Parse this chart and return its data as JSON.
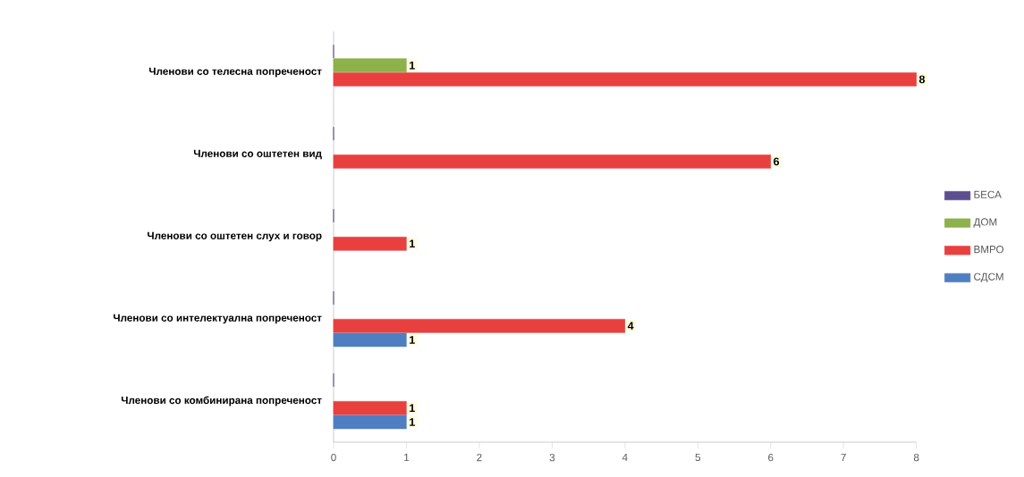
{
  "chart_data": {
    "type": "bar",
    "orientation": "horizontal",
    "categories": [
      "Членови со телесна  попреченост",
      "Членови со оштетен вид",
      "Членови со оштетен слух и говор",
      "Членови со интелектуална попреченост",
      "Членови со комбинирана попреченост"
    ],
    "series": [
      {
        "name": "БЕСА",
        "color": "#5b4f8f",
        "values": [
          0,
          0,
          0,
          0,
          0
        ],
        "value_labels": [
          null,
          null,
          null,
          null,
          null
        ]
      },
      {
        "name": "ДОМ",
        "color": "#8db14b",
        "values": [
          1,
          null,
          null,
          null,
          null
        ],
        "value_labels": [
          "1",
          null,
          null,
          null,
          null
        ]
      },
      {
        "name": "ВМРО",
        "color": "#e8403f",
        "values": [
          8,
          6,
          1,
          4,
          1
        ],
        "value_labels": [
          "8",
          "6",
          "1",
          "4",
          "1"
        ]
      },
      {
        "name": "СДСМ",
        "color": "#4f7fc0",
        "values": [
          null,
          null,
          null,
          1,
          1
        ],
        "value_labels": [
          null,
          null,
          null,
          "1",
          "1"
        ]
      }
    ],
    "xlim": [
      0,
      8
    ],
    "xticks": [
      0,
      1,
      2,
      3,
      4,
      5,
      6,
      7,
      8
    ],
    "grid": false,
    "legend": "right"
  }
}
